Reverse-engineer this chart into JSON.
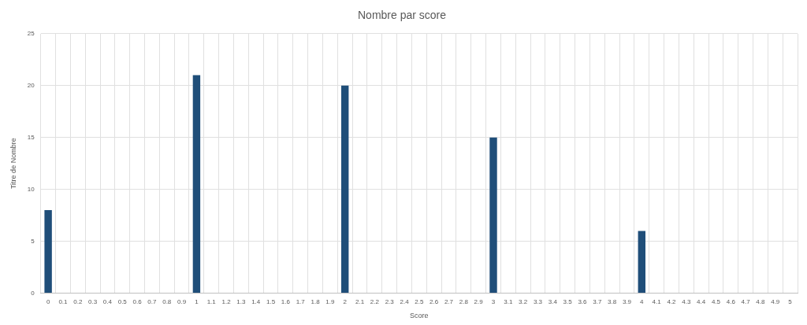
{
  "chart_data": {
    "type": "bar",
    "title": "Nombre par score",
    "xlabel": "Score",
    "ylabel": "Titre de Nombre",
    "categories": [
      "0",
      "0.1",
      "0.2",
      "0.3",
      "0.4",
      "0.5",
      "0.6",
      "0.7",
      "0.8",
      "0.9",
      "1",
      "1.1",
      "1.2",
      "1.3",
      "1.4",
      "1.5",
      "1.6",
      "1.7",
      "1.8",
      "1.9",
      "2",
      "2.1",
      "2.2",
      "2.3",
      "2.4",
      "2.5",
      "2.6",
      "2.7",
      "2.8",
      "2.9",
      "3",
      "3.1",
      "3.2",
      "3.3",
      "3.4",
      "3.5",
      "3.6",
      "3.7",
      "3.8",
      "3.9",
      "4",
      "4.1",
      "4.2",
      "4.3",
      "4.4",
      "4.5",
      "4.6",
      "4.7",
      "4.8",
      "4.9",
      "5"
    ],
    "values": [
      8,
      0,
      0,
      0,
      0,
      0,
      0,
      0,
      0,
      0,
      21,
      0,
      0,
      0,
      0,
      0,
      0,
      0,
      0,
      0,
      20,
      0,
      0,
      0,
      0,
      0,
      0,
      0,
      0,
      0,
      15,
      0,
      0,
      0,
      0,
      0,
      0,
      0,
      0,
      0,
      6,
      0,
      0,
      0,
      0,
      0,
      0,
      0,
      0,
      0,
      0
    ],
    "color": "#1f4e79",
    "ylim": [
      0,
      25
    ],
    "yticks": [
      0,
      5,
      10,
      15,
      20,
      25
    ],
    "grid": true
  }
}
